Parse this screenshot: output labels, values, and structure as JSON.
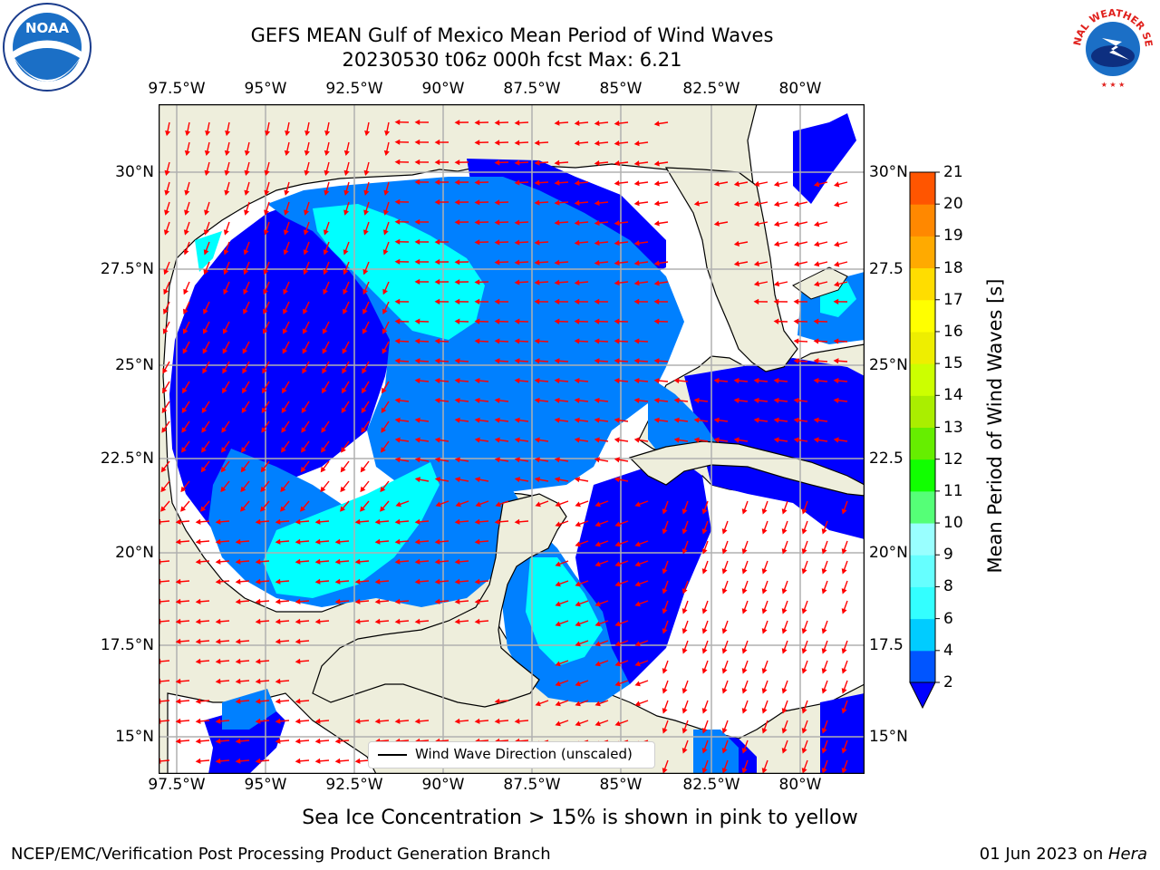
{
  "title": {
    "line1": "GEFS MEAN Gulf of Mexico Mean Period of Wind Waves",
    "line2": "20230530 t06z 000h fcst   Max: 6.21"
  },
  "axes": {
    "lon_ticks": [
      "97.5°W",
      "95°W",
      "92.5°W",
      "90°W",
      "87.5°W",
      "85°W",
      "82.5°W",
      "80°W"
    ],
    "lat_ticks_left": [
      "30°N",
      "27.5°N",
      "25°N",
      "22.5°N",
      "20°N",
      "17.5°N",
      "15°N"
    ],
    "lat_ticks_right": [
      "30°N",
      "27.5",
      "25°N",
      "22.5",
      "20°N",
      "17.5",
      "15°N"
    ],
    "lon_range": [
      -98,
      -78.2
    ],
    "lat_range": [
      14.1,
      31.7
    ]
  },
  "colorbar": {
    "title": "Mean Period of Wind Waves [s]",
    "labels": [
      "2",
      "4",
      "6",
      "8",
      "9",
      "10",
      "11",
      "12",
      "13",
      "14",
      "15",
      "16",
      "17",
      "18",
      "19",
      "20",
      "21"
    ],
    "colors": [
      "#0055ff",
      "#00ccff",
      "#33ffff",
      "#66ffff",
      "#99ffff",
      "#55ff77",
      "#11ff00",
      "#66ee00",
      "#aaee00",
      "#ccff00",
      "#eeee00",
      "#ffff00",
      "#ffdd00",
      "#ffaa00",
      "#ff8800",
      "#ff5500",
      "#ff2200",
      "#ff0000"
    ],
    "under_color": "#0000ff"
  },
  "legend": {
    "label": "Wind Wave Direction (unscaled)"
  },
  "caption": "Sea Ice Concentration > 15% is shown in pink to yellow",
  "footer": {
    "left": "NCEP/EMC/Verification Post Processing Product Generation Branch",
    "right_prefix": "01 Jun 2023 on ",
    "right_host": "Hera"
  },
  "logos": {
    "left": "NOAA",
    "right": "NATIONAL WEATHER SERVICE"
  },
  "colors": {
    "land": "#eeeedc",
    "period_under_2": "#0000ff",
    "period_2_4": "#0080ff",
    "period_4_6": "#00ffff",
    "period_6_8": "#66ffff",
    "arrow": "#ff0000",
    "grid": "#b0b0b0"
  }
}
